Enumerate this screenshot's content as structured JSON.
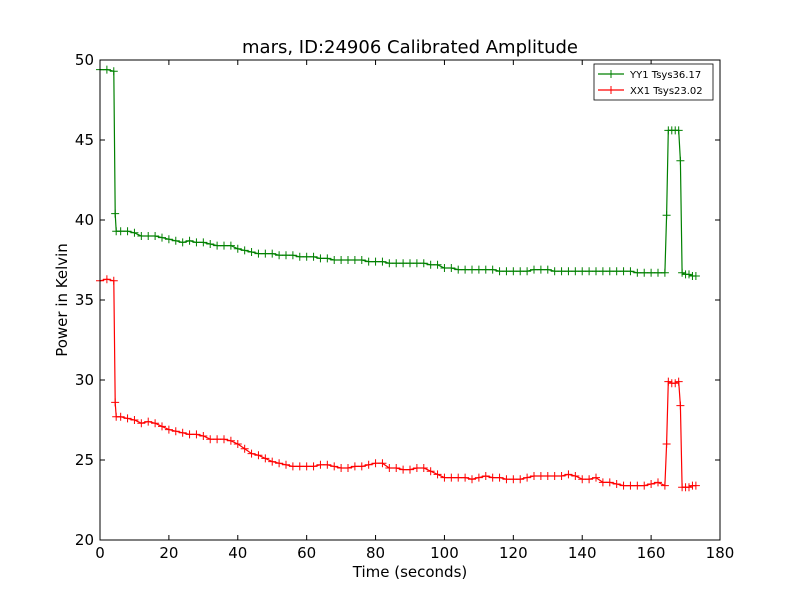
{
  "chart_data": {
    "type": "line",
    "title": "mars, ID:24906 Calibrated Amplitude",
    "xlabel": "Time (seconds)",
    "ylabel": "Power in Kelvin",
    "xlim": [
      0,
      180
    ],
    "ylim": [
      20,
      50
    ],
    "xticks": [
      "0",
      "20",
      "40",
      "60",
      "80",
      "100",
      "120",
      "140",
      "160",
      "180"
    ],
    "yticks": [
      "20",
      "25",
      "30",
      "35",
      "40",
      "45",
      "50"
    ],
    "grid": false,
    "legend_position": "top-right",
    "series": [
      {
        "name": "YY1 Tsys36.17",
        "color": "#008000",
        "x": [
          0,
          2,
          4,
          4.4,
          4.7,
          6,
          8,
          10,
          12,
          14,
          16,
          18,
          20,
          22,
          24,
          26,
          28,
          30,
          32,
          34,
          36,
          38,
          40,
          42,
          44,
          46,
          48,
          50,
          52,
          54,
          56,
          58,
          60,
          62,
          64,
          66,
          68,
          70,
          72,
          74,
          76,
          78,
          80,
          82,
          84,
          86,
          88,
          90,
          92,
          94,
          96,
          98,
          100,
          102,
          104,
          106,
          108,
          110,
          112,
          114,
          116,
          118,
          120,
          122,
          124,
          126,
          128,
          130,
          132,
          134,
          136,
          138,
          140,
          142,
          144,
          146,
          148,
          150,
          152,
          154,
          156,
          158,
          160,
          162,
          164,
          164.5,
          165,
          166,
          167,
          168,
          168.5,
          169,
          170,
          171,
          172,
          173
        ],
        "y": [
          49.4,
          49.4,
          49.3,
          40.4,
          39.3,
          39.3,
          39.3,
          39.2,
          39.0,
          39.0,
          39.0,
          38.9,
          38.8,
          38.7,
          38.6,
          38.7,
          38.6,
          38.6,
          38.5,
          38.4,
          38.4,
          38.4,
          38.2,
          38.1,
          38.0,
          37.9,
          37.9,
          37.9,
          37.8,
          37.8,
          37.8,
          37.7,
          37.7,
          37.7,
          37.6,
          37.6,
          37.5,
          37.5,
          37.5,
          37.5,
          37.5,
          37.4,
          37.4,
          37.4,
          37.3,
          37.3,
          37.3,
          37.3,
          37.3,
          37.3,
          37.2,
          37.2,
          37.0,
          37.0,
          36.9,
          36.9,
          36.9,
          36.9,
          36.9,
          36.9,
          36.8,
          36.8,
          36.8,
          36.8,
          36.8,
          36.9,
          36.9,
          36.9,
          36.8,
          36.8,
          36.8,
          36.8,
          36.8,
          36.8,
          36.8,
          36.8,
          36.8,
          36.8,
          36.8,
          36.8,
          36.7,
          36.7,
          36.7,
          36.7,
          36.7,
          40.3,
          45.6,
          45.6,
          45.6,
          45.6,
          43.7,
          36.7,
          36.6,
          36.6,
          36.5,
          36.5
        ]
      },
      {
        "name": "XX1 Tsys23.02",
        "color": "#ff0000",
        "x": [
          0,
          2,
          4,
          4.4,
          4.7,
          6,
          8,
          10,
          12,
          14,
          16,
          18,
          20,
          22,
          24,
          26,
          28,
          30,
          32,
          34,
          36,
          38,
          40,
          42,
          44,
          46,
          48,
          50,
          52,
          54,
          56,
          58,
          60,
          62,
          64,
          66,
          68,
          70,
          72,
          74,
          76,
          78,
          80,
          82,
          84,
          86,
          88,
          90,
          92,
          94,
          96,
          98,
          100,
          102,
          104,
          106,
          108,
          110,
          112,
          114,
          116,
          118,
          120,
          122,
          124,
          126,
          128,
          130,
          132,
          134,
          136,
          138,
          140,
          142,
          144,
          146,
          148,
          150,
          152,
          154,
          156,
          158,
          160,
          162,
          164,
          164.5,
          165,
          166,
          167,
          168,
          168.5,
          169,
          170,
          171,
          172,
          173
        ],
        "y": [
          36.2,
          36.3,
          36.2,
          28.6,
          27.7,
          27.7,
          27.6,
          27.5,
          27.3,
          27.4,
          27.3,
          27.1,
          26.9,
          26.8,
          26.7,
          26.6,
          26.6,
          26.5,
          26.3,
          26.3,
          26.3,
          26.2,
          26.0,
          25.7,
          25.4,
          25.3,
          25.1,
          24.9,
          24.8,
          24.7,
          24.6,
          24.6,
          24.6,
          24.6,
          24.7,
          24.7,
          24.6,
          24.5,
          24.5,
          24.6,
          24.6,
          24.7,
          24.8,
          24.8,
          24.5,
          24.5,
          24.4,
          24.4,
          24.5,
          24.5,
          24.3,
          24.1,
          23.9,
          23.9,
          23.9,
          23.9,
          23.8,
          23.9,
          24.0,
          23.9,
          23.9,
          23.8,
          23.8,
          23.8,
          23.9,
          24.0,
          24.0,
          24.0,
          24.0,
          24.0,
          24.1,
          24.0,
          23.8,
          23.8,
          23.9,
          23.6,
          23.6,
          23.5,
          23.4,
          23.4,
          23.4,
          23.4,
          23.5,
          23.6,
          23.4,
          26.0,
          29.9,
          29.8,
          29.8,
          29.9,
          28.4,
          23.3,
          23.3,
          23.3,
          23.4,
          23.4
        ]
      }
    ]
  }
}
